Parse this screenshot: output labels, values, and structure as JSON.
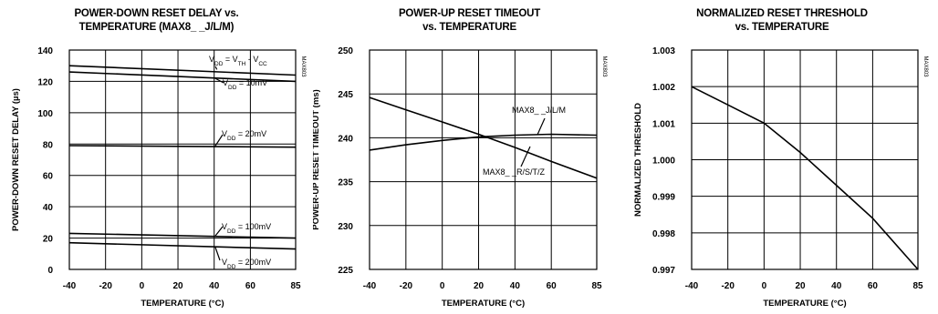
{
  "charts": [
    {
      "title_line1": "POWER-DOWN RESET DELAY vs.",
      "title_line2": "TEMPERATURE (MAX8_ _J/L/M)",
      "xlabel": "TEMPERATURE (°C)",
      "ylabel": "POWER-DOWN RESET DELAY (µs)",
      "side_id": "MAX803",
      "x_ticks": [
        "-40",
        "-20",
        "0",
        "20",
        "40",
        "60",
        "85"
      ],
      "y_ticks": [
        "0",
        "20",
        "40",
        "60",
        "80",
        "100",
        "120",
        "140"
      ]
    },
    {
      "title_line1": "POWER-UP RESET TIMEOUT",
      "title_line2": "vs. TEMPERATURE",
      "xlabel": "TEMPERATURE (°C)",
      "ylabel": "POWER-UP RESET TIMEOUT (ms)",
      "side_id": "MAX803",
      "x_ticks": [
        "-40",
        "-20",
        "0",
        "20",
        "40",
        "60",
        "85"
      ],
      "y_ticks": [
        "225",
        "230",
        "235",
        "240",
        "245",
        "250"
      ]
    },
    {
      "title_line1": "NORMALIZED RESET THRESHOLD",
      "title_line2": "vs. TEMPERATURE",
      "xlabel": "TEMPERATURE (°C)",
      "ylabel": "NORMALIZED THRESHOLD",
      "side_id": "MAX803",
      "x_ticks": [
        "-40",
        "-20",
        "0",
        "20",
        "40",
        "60",
        "85"
      ],
      "y_ticks": [
        "0.997",
        "0.998",
        "0.999",
        "1.000",
        "1.001",
        "1.002",
        "1.003"
      ]
    }
  ],
  "chart_data": [
    {
      "type": "line",
      "title": "POWER-DOWN RESET DELAY vs. TEMPERATURE (MAX8_ _J/L/M)",
      "xlabel": "TEMPERATURE (°C)",
      "ylabel": "POWER-DOWN RESET DELAY (µs)",
      "xlim": [
        -40,
        85
      ],
      "ylim": [
        0,
        140
      ],
      "grid": true,
      "series": [
        {
          "name": "VDD = VTH - VCC",
          "annotation": {
            "pre": "V",
            "sub1": "DD",
            "mid1": " = V",
            "sub2": "TH",
            "mid2": " - V",
            "sub3": "CC"
          },
          "x": [
            -40,
            85
          ],
          "y": [
            130,
            124
          ]
        },
        {
          "name": "VDD = 10mV",
          "annotation": {
            "pre": "V",
            "sub1": "DD",
            "mid1": " = 10mV"
          },
          "x": [
            -40,
            85
          ],
          "y": [
            126,
            120
          ]
        },
        {
          "name": "VDD = 20mV",
          "annotation": {
            "pre": "V",
            "sub1": "DD",
            "mid1": " = 20mV"
          },
          "x": [
            -40,
            85
          ],
          "y": [
            79,
            78
          ]
        },
        {
          "name": "VDD = 100mV",
          "annotation": {
            "pre": "V",
            "sub1": "DD",
            "mid1": " = 100mV"
          },
          "x": [
            -40,
            85
          ],
          "y": [
            23,
            20
          ]
        },
        {
          "name": "VDD = 200mV",
          "annotation": {
            "pre": "V",
            "sub1": "DD",
            "mid1": " = 200mV"
          },
          "x": [
            -40,
            85
          ],
          "y": [
            17,
            13
          ]
        }
      ]
    },
    {
      "type": "line",
      "title": "POWER-UP RESET TIMEOUT vs. TEMPERATURE",
      "xlabel": "TEMPERATURE (°C)",
      "ylabel": "POWER-UP RESET TIMEOUT (ms)",
      "xlim": [
        -40,
        85
      ],
      "ylim": [
        225,
        250
      ],
      "grid": true,
      "series": [
        {
          "name": "MAX8_ _J/L/M",
          "x": [
            -40,
            -20,
            0,
            20,
            40,
            60,
            85
          ],
          "y": [
            238.6,
            239.2,
            239.7,
            240.1,
            240.3,
            240.4,
            240.3
          ]
        },
        {
          "name": "MAX8_ _R/S/T/Z",
          "x": [
            -40,
            -20,
            0,
            20,
            40,
            60,
            85
          ],
          "y": [
            244.6,
            243.2,
            241.8,
            240.4,
            238.9,
            237.3,
            235.4
          ]
        }
      ]
    },
    {
      "type": "line",
      "title": "NORMALIZED RESET THRESHOLD vs. TEMPERATURE",
      "xlabel": "TEMPERATURE (°C)",
      "ylabel": "NORMALIZED THRESHOLD",
      "xlim": [
        -40,
        85
      ],
      "ylim": [
        0.997,
        1.003
      ],
      "grid": true,
      "series": [
        {
          "name": "",
          "x": [
            -40,
            -20,
            0,
            20,
            40,
            60,
            85
          ],
          "y": [
            1.002,
            1.0015,
            1.001,
            1.0002,
            0.9993,
            0.9984,
            0.997
          ]
        }
      ]
    }
  ],
  "annotations": {
    "p1_j": "MAX8_ _J/L/M",
    "p1_r": "MAX8_ _R/S/T/Z"
  }
}
